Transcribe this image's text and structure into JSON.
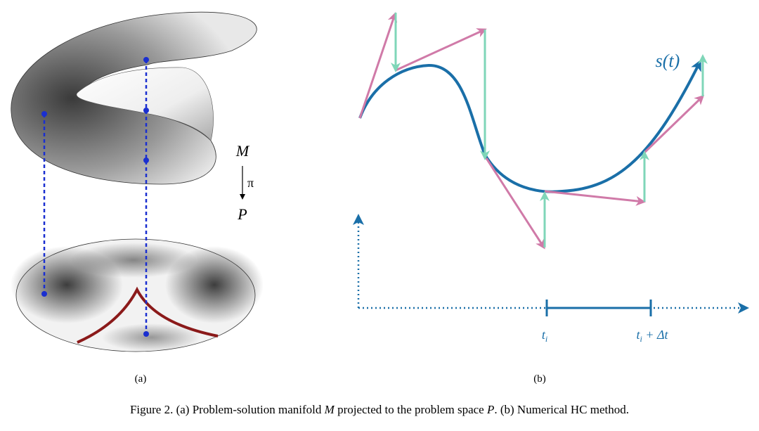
{
  "panel_a": {
    "manifold_label": "M",
    "map_label": "π",
    "space_label": "P",
    "caption": "(a)"
  },
  "panel_b": {
    "curve_label": "s(t)",
    "tick_1": {
      "base": "t",
      "sub": "i"
    },
    "tick_2": {
      "base": "t",
      "sub": "i",
      "rest": " + Δt"
    },
    "caption": "(b)"
  },
  "caption": {
    "parts": [
      "Figure 2. (a) Problem-solution manifold ",
      "M",
      " projected to the problem space ",
      "P",
      ". (b) Numerical HC method."
    ]
  }
}
